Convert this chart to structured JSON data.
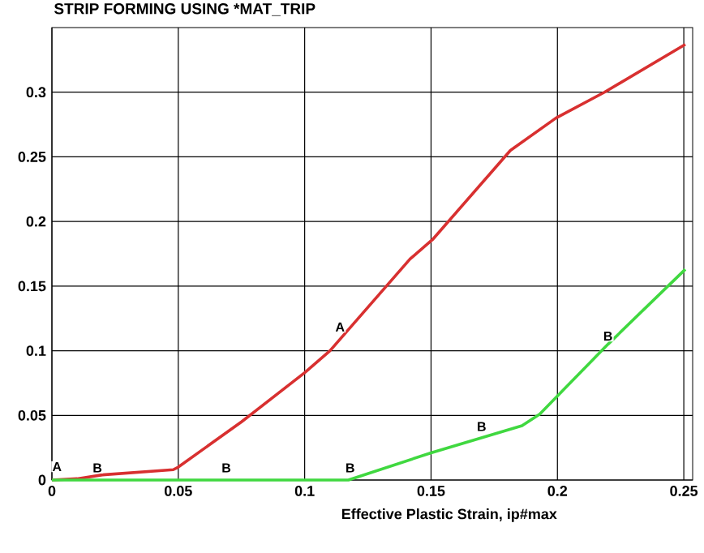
{
  "chart_data": {
    "type": "line",
    "title": "STRIP FORMING USING *MAT_TRIP",
    "xlabel": "Effective Plastic Strain, ip#max",
    "xlim": [
      0,
      0.2535
    ],
    "ylim": [
      0,
      0.35
    ],
    "xticks": [
      0,
      0.05,
      0.1,
      0.15,
      0.2,
      0.25
    ],
    "yticks": [
      0,
      0.05,
      0.1,
      0.15,
      0.2,
      0.25,
      0.3
    ],
    "grid": true,
    "marker": "none",
    "line_style": "solid",
    "series": [
      {
        "color": "#d83030",
        "x": [
          0,
          0.01,
          0.02,
          0.048,
          0.05,
          0.075,
          0.1,
          0.11,
          0.1417,
          0.1506,
          0.1814,
          0.1994,
          0.2186,
          0.2506
        ],
        "values": [
          0,
          0.001,
          0.004,
          0.008,
          0.01,
          0.045,
          0.083,
          0.1,
          0.171,
          0.186,
          0.255,
          0.28,
          0.3,
          0.337
        ]
      },
      {
        "color": "#40d840",
        "x": [
          0,
          0.05,
          0.1,
          0.1173,
          0.15,
          0.186,
          0.193,
          0.22,
          0.2506
        ],
        "values": [
          0,
          0,
          0,
          0,
          0.021,
          0.042,
          0.051,
          0.105,
          0.163
        ]
      }
    ],
    "annotations": [
      {
        "text": "A",
        "x": 0.002,
        "y": 0.004
      },
      {
        "text": "A",
        "x": 0.114,
        "y": 0.112
      },
      {
        "text": "B",
        "x": 0.018,
        "y": 0.003
      },
      {
        "text": "B",
        "x": 0.069,
        "y": 0.003
      },
      {
        "text": "B",
        "x": 0.118,
        "y": 0.003
      },
      {
        "text": "B",
        "x": 0.17,
        "y": 0.035
      },
      {
        "text": "B",
        "x": 0.22,
        "y": 0.105
      }
    ]
  }
}
